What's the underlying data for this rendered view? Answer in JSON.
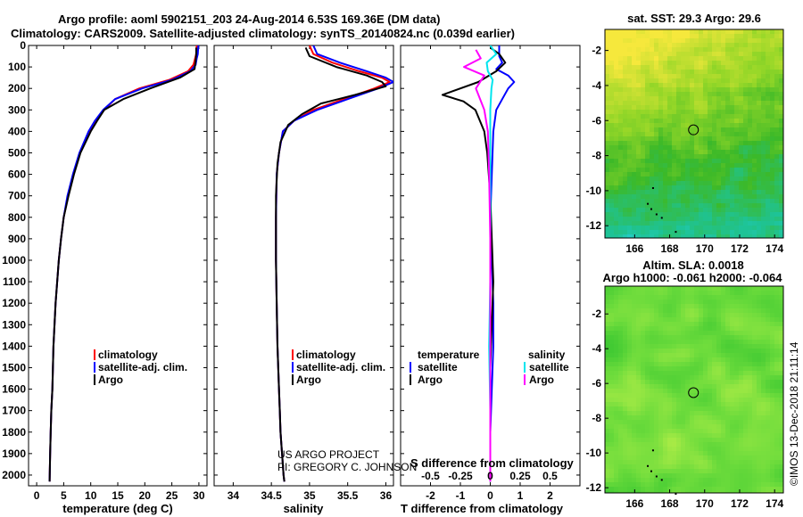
{
  "header": {
    "title_line1": "Argo profile: aoml 5902151_203 24-Aug-2014 6.53S 169.36E (DM data)",
    "title_line2": "Climatology: CARS2009. Satellite-adjusted climatology: synTS_20140824.nc (0.039d earlier)"
  },
  "colors": {
    "climatology": "#ff0000",
    "satellite": "#0000ff",
    "argo": "#000000",
    "sat_salinity": "#00e5ee",
    "argo_salinity": "#ff00ff"
  },
  "pressure_ticks": [
    0,
    100,
    200,
    300,
    400,
    500,
    600,
    700,
    800,
    900,
    1000,
    1100,
    1200,
    1300,
    1400,
    1500,
    1600,
    1700,
    1800,
    1900,
    2000
  ],
  "credits": {
    "line1": "US ARGO PROJECT",
    "line2": "PI: GREGORY C. JOHNSON"
  },
  "timestamp": "©IMOS 13-Dec-2018 21:11:14",
  "chart_data": [
    {
      "type": "line",
      "id": "temperature",
      "xlabel": "temperature (deg C)",
      "xlim": [
        -1.5,
        31.5
      ],
      "ylim": [
        2050,
        0
      ],
      "xticks": [
        0,
        5,
        10,
        15,
        20,
        25,
        30
      ],
      "legend": {
        "placement": "lower-center",
        "entries": [
          "climatology",
          "satellite-adj. clim.",
          "Argo"
        ]
      },
      "series": [
        {
          "name": "climatology",
          "color": "#ff0000",
          "x": [
            29.6,
            29.5,
            29.3,
            29.0,
            28.0,
            24.5,
            19.0,
            14.5,
            12.5,
            11.0,
            9.8,
            8.0,
            6.8,
            5.8,
            5.0,
            4.5,
            4.1,
            3.8,
            3.5,
            3.3,
            3.1,
            3.0,
            2.9,
            2.7,
            2.6,
            2.5,
            2.4
          ],
          "y": [
            0,
            40,
            60,
            90,
            120,
            160,
            200,
            250,
            300,
            350,
            400,
            500,
            600,
            700,
            800,
            900,
            1000,
            1100,
            1200,
            1300,
            1400,
            1500,
            1600,
            1700,
            1800,
            1900,
            2030
          ]
        },
        {
          "name": "satellite-adj. clim.",
          "color": "#0000ff",
          "x": [
            29.9,
            29.8,
            29.6,
            29.4,
            28.4,
            25.0,
            19.5,
            14.5,
            12.3,
            10.8,
            9.6,
            7.9,
            6.7,
            5.7,
            5.0,
            4.5,
            4.1,
            3.8,
            3.5,
            3.3,
            3.1,
            3.0,
            2.9,
            2.7,
            2.6,
            2.5,
            2.4
          ],
          "y": [
            0,
            40,
            60,
            90,
            120,
            160,
            200,
            250,
            300,
            350,
            400,
            500,
            600,
            700,
            800,
            900,
            1000,
            1100,
            1200,
            1300,
            1400,
            1500,
            1600,
            1700,
            1800,
            1900,
            2030
          ]
        },
        {
          "name": "Argo",
          "color": "#000000",
          "x": [
            29.5,
            29.5,
            29.4,
            29.2,
            26.5,
            21.0,
            16.0,
            12.5,
            11.2,
            10.0,
            8.1,
            6.9,
            5.9,
            5.0,
            4.5,
            4.1,
            3.8,
            3.5,
            3.3,
            3.1,
            3.0,
            2.9,
            2.7,
            2.6,
            2.5,
            2.4
          ],
          "y": [
            10,
            40,
            70,
            110,
            150,
            200,
            250,
            300,
            350,
            400,
            500,
            600,
            700,
            800,
            900,
            1000,
            1100,
            1200,
            1300,
            1400,
            1500,
            1600,
            1700,
            1800,
            1900,
            2030
          ]
        }
      ]
    },
    {
      "type": "line",
      "id": "salinity",
      "xlabel": "salinity",
      "xlim": [
        33.75,
        36.1
      ],
      "ylim": [
        2050,
        0
      ],
      "xticks": [
        34,
        34.5,
        35,
        35.5,
        36
      ],
      "xticklabels": [
        "34",
        "34.5",
        "35",
        "35.5",
        "36"
      ],
      "legend": {
        "placement": "lower-center",
        "entries": [
          "climatology",
          "satellite-adj. clim.",
          "Argo"
        ]
      },
      "series": [
        {
          "name": "climatology",
          "color": "#ff0000",
          "x": [
            35.0,
            35.05,
            35.3,
            35.65,
            35.95,
            36.05,
            35.85,
            35.45,
            35.05,
            34.8,
            34.65,
            34.6,
            34.57,
            34.56,
            34.56,
            34.57,
            34.58,
            34.6,
            34.61,
            34.62,
            34.64,
            34.65,
            34.66,
            34.67
          ],
          "y": [
            0,
            40,
            80,
            120,
            150,
            170,
            200,
            250,
            300,
            350,
            400,
            500,
            600,
            800,
            1000,
            1200,
            1400,
            1600,
            1700,
            1800,
            1900,
            1950,
            2000,
            2030
          ]
        },
        {
          "name": "satellite-adj. clim.",
          "color": "#0000ff",
          "x": [
            35.05,
            35.1,
            35.4,
            35.75,
            36.0,
            36.1,
            35.9,
            35.5,
            35.1,
            34.8,
            34.65,
            34.6,
            34.57,
            34.56,
            34.56,
            34.57,
            34.58,
            34.6,
            34.61,
            34.62,
            34.64,
            34.65,
            34.66,
            34.67
          ],
          "y": [
            0,
            40,
            80,
            120,
            150,
            170,
            200,
            250,
            300,
            350,
            400,
            500,
            600,
            800,
            1000,
            1200,
            1400,
            1600,
            1700,
            1800,
            1900,
            1950,
            2000,
            2030
          ]
        },
        {
          "name": "Argo",
          "color": "#000000",
          "x": [
            34.95,
            35.0,
            35.35,
            35.75,
            35.95,
            36.0,
            35.6,
            35.15,
            34.9,
            34.72,
            34.62,
            34.58,
            34.56,
            34.56,
            34.57,
            34.58,
            34.6,
            34.61,
            34.62,
            34.64,
            34.65,
            34.66,
            34.67
          ],
          "y": [
            10,
            50,
            100,
            140,
            170,
            190,
            230,
            270,
            320,
            370,
            450,
            550,
            700,
            1000,
            1200,
            1400,
            1600,
            1700,
            1800,
            1900,
            1950,
            2000,
            2030
          ]
        }
      ]
    },
    {
      "type": "line",
      "id": "difference",
      "xlabel": "T difference from climatology",
      "x2label": "S difference from climatology",
      "xlim": [
        -3,
        3
      ],
      "ylim": [
        2050,
        0
      ],
      "xticks": [
        -2,
        -1,
        0,
        1,
        2
      ],
      "x2ticks": [
        -0.5,
        -0.25,
        0,
        0.25,
        0.5
      ],
      "x2ticklabels": [
        "-0.5",
        "-0.25",
        "0",
        "0.25",
        "0.5"
      ],
      "legend": {
        "placement": "lower-center",
        "temperature_title": "temperature",
        "salinity_title": "salinity",
        "temperature_entries": [
          "satellite",
          "Argo"
        ],
        "salinity_entries": [
          "satellite",
          "Argo"
        ]
      },
      "series": [
        {
          "name": "satellite",
          "group": "temperature",
          "color": "#0000ff",
          "x": [
            0.3,
            0.3,
            0.4,
            0.2,
            0.6,
            0.8,
            0.6,
            0.4,
            0.2,
            0.1,
            0.05,
            0.0,
            0.05,
            0.1,
            0.1,
            0.05,
            0.0,
            0.0,
            0.0
          ],
          "y": [
            0,
            50,
            80,
            110,
            140,
            170,
            200,
            250,
            300,
            400,
            600,
            800,
            1000,
            1200,
            1400,
            1600,
            1800,
            1950,
            2030
          ]
        },
        {
          "name": "Argo",
          "group": "temperature",
          "color": "#000000",
          "x": [
            0.0,
            0.3,
            0.5,
            0.2,
            -0.4,
            -1.6,
            -0.9,
            -0.5,
            -0.2,
            -0.1,
            0.0,
            0.05,
            0.1,
            0.05,
            0.0,
            0.0,
            0.0,
            0.0
          ],
          "y": [
            10,
            40,
            80,
            120,
            170,
            230,
            260,
            300,
            400,
            500,
            700,
            900,
            1100,
            1300,
            1500,
            1700,
            1900,
            2030
          ]
        },
        {
          "name": "satellite",
          "group": "salinity",
          "color": "#00e5ee",
          "x": [
            0.0,
            0.05,
            -0.03,
            -0.02,
            0.02,
            0.01,
            0.0,
            0.0,
            0.0,
            0.0,
            -0.01,
            0.0,
            0.0
          ],
          "y": [
            0,
            40,
            80,
            120,
            160,
            200,
            300,
            500,
            800,
            1100,
            1400,
            1700,
            2030
          ]
        },
        {
          "name": "Argo",
          "group": "salinity",
          "color": "#ff00ff",
          "x": [
            -0.12,
            -0.08,
            -0.22,
            -0.05,
            -0.12,
            -0.05,
            -0.02,
            -0.01,
            0.0,
            0.0,
            0.0
          ],
          "y": [
            20,
            60,
            100,
            140,
            200,
            300,
            400,
            600,
            900,
            1300,
            2030
          ]
        }
      ]
    },
    {
      "type": "heatmap",
      "id": "sst-map",
      "title": "sat. SST: 29.3 Argo: 29.6",
      "xlim": [
        164.3,
        174.5
      ],
      "ylim": [
        -12.7,
        -0.8
      ],
      "xticks": [
        166,
        168,
        170,
        172,
        174
      ],
      "yticks": [
        -2,
        -4,
        -6,
        -8,
        -10,
        -12
      ],
      "marker": {
        "lon": 169.36,
        "lat": -6.53
      }
    },
    {
      "type": "heatmap",
      "id": "sla-map",
      "title": "Altim. SLA: 0.0018",
      "subtitle": "Argo h1000: -0.061 h2000: -0.064",
      "xlim": [
        164.3,
        174.5
      ],
      "ylim": [
        -12.3,
        -0.4
      ],
      "xticks": [
        166,
        168,
        170,
        172,
        174
      ],
      "yticks": [
        -2,
        -4,
        -6,
        -8,
        -10,
        -12
      ],
      "marker": {
        "lon": 169.36,
        "lat": -6.53
      }
    }
  ]
}
